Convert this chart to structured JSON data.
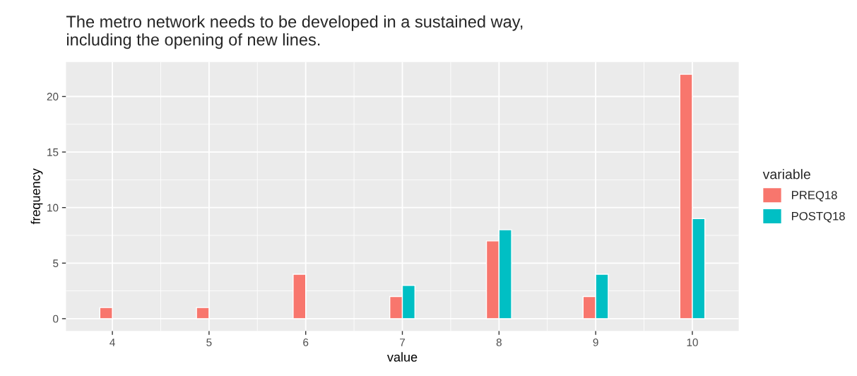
{
  "chart_data": {
    "type": "bar",
    "title": "The metro network needs to be developed in a sustained way,\nincluding the opening of new lines.",
    "xlabel": "value",
    "ylabel": "frequency",
    "legend_title": "variable",
    "x": [
      4,
      5,
      6,
      7,
      8,
      9,
      10
    ],
    "series": [
      {
        "name": "PREQ18",
        "color": "#f8766d",
        "values": [
          1,
          1,
          4,
          2,
          7,
          2,
          22
        ]
      },
      {
        "name": "POSTQ18",
        "color": "#00bfc4",
        "values": [
          null,
          null,
          null,
          3,
          8,
          4,
          9
        ]
      }
    ],
    "xlim": [
      3.52,
      10.48
    ],
    "xticks": [
      4,
      5,
      6,
      7,
      8,
      9,
      10
    ],
    "ylim": [
      -1.1,
      23.1
    ],
    "yticks": [
      0,
      5,
      10,
      15,
      20
    ],
    "grid": true,
    "legend": "right"
  }
}
